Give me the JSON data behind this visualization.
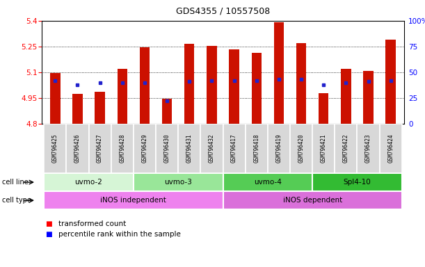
{
  "title": "GDS4355 / 10557508",
  "samples": [
    "GSM796425",
    "GSM796426",
    "GSM796427",
    "GSM796428",
    "GSM796429",
    "GSM796430",
    "GSM796431",
    "GSM796432",
    "GSM796417",
    "GSM796418",
    "GSM796419",
    "GSM796420",
    "GSM796421",
    "GSM796422",
    "GSM796423",
    "GSM796424"
  ],
  "transformed_counts": [
    5.095,
    4.975,
    4.985,
    5.12,
    5.245,
    4.945,
    5.265,
    5.255,
    5.235,
    5.215,
    5.39,
    5.27,
    4.98,
    5.12,
    5.11,
    5.29
  ],
  "percentile_ranks": [
    42,
    38,
    40,
    40,
    40,
    22,
    41,
    42,
    42,
    42,
    43,
    43,
    38,
    40,
    41,
    42
  ],
  "cell_line_groups": [
    {
      "label": "uvmo-2",
      "start": 0,
      "end": 3,
      "color": "#d6f5d6"
    },
    {
      "label": "uvmo-3",
      "start": 4,
      "end": 7,
      "color": "#99e699"
    },
    {
      "label": "uvmo-4",
      "start": 8,
      "end": 11,
      "color": "#55cc55"
    },
    {
      "label": "Spl4-10",
      "start": 12,
      "end": 15,
      "color": "#33bb33"
    }
  ],
  "cell_type_groups": [
    {
      "label": "iNOS independent",
      "start": 0,
      "end": 7,
      "color": "#ee82ee"
    },
    {
      "label": "iNOS dependent",
      "start": 8,
      "end": 15,
      "color": "#da70da"
    }
  ],
  "ymin": 4.8,
  "ymax": 5.4,
  "yticks": [
    4.8,
    4.95,
    5.1,
    5.25,
    5.4
  ],
  "bar_color": "#cc1100",
  "blue_color": "#2222cc",
  "bar_width": 0.45,
  "right_yticks": [
    0,
    25,
    50,
    75,
    100
  ],
  "right_yticklabels": [
    "0",
    "25",
    "50",
    "75",
    "100%"
  ]
}
